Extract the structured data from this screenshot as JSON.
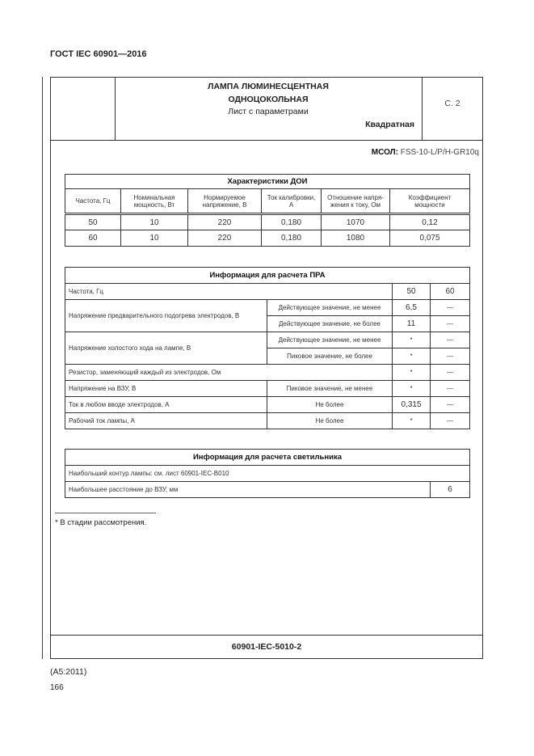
{
  "header": {
    "doc_id": "ГОСТ IEC 60901—2016"
  },
  "sheet": {
    "title_line1": "ЛАМПА ЛЮМИНЕСЦЕНТНАЯ",
    "title_line2": "ОДНОЦОКОЛЬНАЯ",
    "subtitle": "Лист с параметрами",
    "shape": "Квадратная",
    "page": "С. 2",
    "mcol_label": "МСОЛ:",
    "mcol_value": " FSS-10-L/P/H-GR10q",
    "sheet_number": "60901-IEC-5010-2"
  },
  "doi": {
    "title": "Характеристики ДОИ",
    "headers": [
      "Частота, Гц",
      "Номинальная мощность, Вт",
      "Нормируемое напряжение, В",
      "Ток калибровки, А",
      "Отношение напря-жения к току, Ом",
      "Коэффициент мощности"
    ],
    "rows": [
      [
        "50",
        "10",
        "220",
        "0,180",
        "1070",
        "0,12"
      ],
      [
        "60",
        "10",
        "220",
        "0,180",
        "1080",
        "0,075"
      ]
    ]
  },
  "pra": {
    "title": "Информация для расчета ПРА",
    "freq_label": "Частота, Гц",
    "freq": [
      "50",
      "60"
    ],
    "rows": [
      {
        "label": "Напряжение предварительного подогрева электродов, В",
        "sub": [
          "Действующее значение, не менее",
          "Действующее значение, не более"
        ],
        "v50": [
          "6,5",
          "11"
        ],
        "v60": [
          "—",
          "—"
        ]
      },
      {
        "label": "Напряжение холостого хода на лампе, В",
        "sub": [
          "Действующее значение, не менее",
          "Пиковое значение, не более"
        ],
        "v50": [
          "*",
          "*"
        ],
        "v60": [
          "—",
          "—"
        ]
      },
      {
        "label": "Резистор, заменяющий каждый из электродов, Ом",
        "v50": "*",
        "v60": "—"
      },
      {
        "label": "Напряжение на ВЗУ, В",
        "sub": "Пиковое значение, не менее",
        "v50": "*",
        "v60": "—"
      },
      {
        "label": "Ток в любом вводе электродов, А",
        "sub": "Не более",
        "v50": "0,315",
        "v60": "—"
      },
      {
        "label": "Рабочий ток лампы, А",
        "sub": "Не более",
        "v50": "*",
        "v60": "—"
      }
    ]
  },
  "lum": {
    "title": "Информация для расчета светильника",
    "row1": "Наибольший контур лампы: см. лист 60901-IEC-B010",
    "row2": "Наибольшее расстояние до ВЗУ, мм",
    "row2_value": "6"
  },
  "footnote": "* В стадии рассмотрения.",
  "footer": {
    "amendment": "(A5:2011)",
    "page_number": "166"
  }
}
